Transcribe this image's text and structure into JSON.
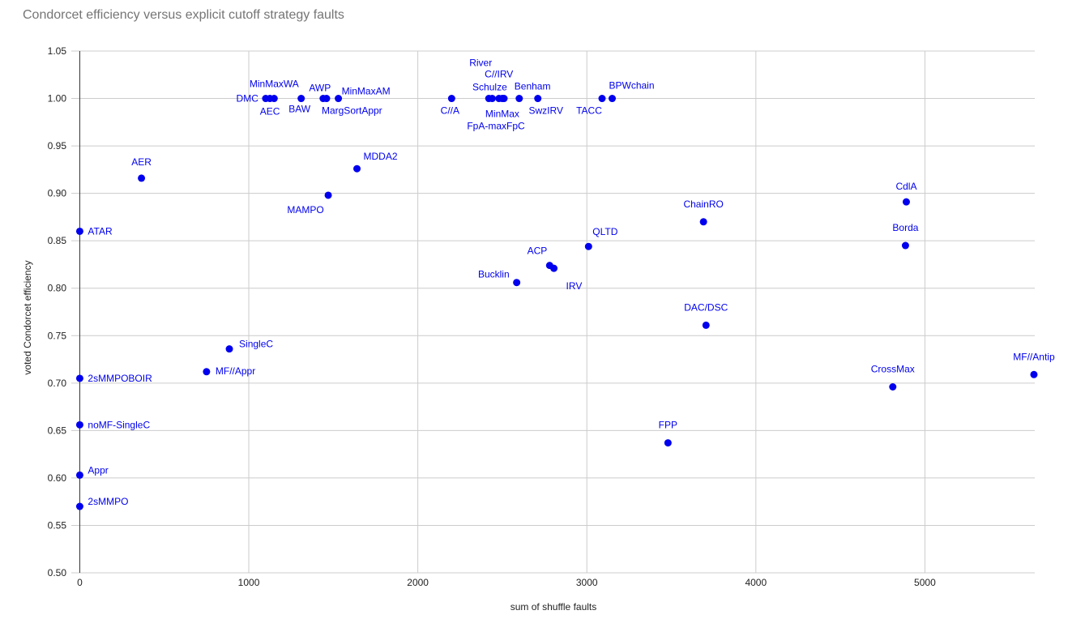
{
  "chart_data": {
    "type": "scatter",
    "title": "Condorcet efficiency versus explicit cutoff strategy faults",
    "xlabel": "sum of shuffle faults",
    "ylabel": "voted Condorcet efficiency",
    "xlim": [
      -50,
      5650
    ],
    "ylim": [
      0.5,
      1.05
    ],
    "xticks": [
      0,
      1000,
      2000,
      3000,
      4000,
      5000
    ],
    "yticks": [
      0.5,
      0.55,
      0.6,
      0.65,
      0.7,
      0.75,
      0.8,
      0.85,
      0.9,
      0.95,
      1.0,
      1.05
    ],
    "grid": true,
    "color": "#0000ee",
    "points": [
      {
        "label": "DMC",
        "x": 1100,
        "y": 1.0,
        "pos": "left"
      },
      {
        "label": "AEC",
        "x": 1125,
        "y": 1.0,
        "pos": "below"
      },
      {
        "label": "MinMaxWA",
        "x": 1150,
        "y": 1.0,
        "pos": "above"
      },
      {
        "label": "BAW",
        "x": 1310,
        "y": 1.0,
        "pos": "below"
      },
      {
        "label": "AWP",
        "x": 1440,
        "y": 1.0,
        "pos": "above"
      },
      {
        "label": "MargSortAppr",
        "x": 1460,
        "y": 1.0,
        "pos": "below-right"
      },
      {
        "label": "MinMaxAM",
        "x": 1530,
        "y": 1.0,
        "pos": "above-right"
      },
      {
        "label": "C//A",
        "x": 2200,
        "y": 1.0,
        "pos": "below-left"
      },
      {
        "label": "River",
        "x": 2420,
        "y": 1.0,
        "pos": "above-high"
      },
      {
        "label": "Schulze",
        "x": 2440,
        "y": 1.0,
        "pos": "above"
      },
      {
        "label": "C//IRV",
        "x": 2480,
        "y": 1.0,
        "pos": "above-mid"
      },
      {
        "label": "MinMax",
        "x": 2500,
        "y": 1.0,
        "pos": "below"
      },
      {
        "label": "FpA-maxFpC",
        "x": 2510,
        "y": 1.0,
        "pos": "below-low"
      },
      {
        "label": "Benham",
        "x": 2600,
        "y": 1.0,
        "pos": "above-right"
      },
      {
        "label": "SwzIRV",
        "x": 2710,
        "y": 1.0,
        "pos": "below-right"
      },
      {
        "label": "TACC",
        "x": 3090,
        "y": 1.0,
        "pos": "below-left"
      },
      {
        "label": "BPWchain",
        "x": 3150,
        "y": 1.0,
        "pos": "above-right"
      },
      {
        "label": "AER",
        "x": 365,
        "y": 0.916,
        "pos": "above"
      },
      {
        "label": "MDDA2",
        "x": 1640,
        "y": 0.926,
        "pos": "above-right"
      },
      {
        "label": "MAMPO",
        "x": 1470,
        "y": 0.898,
        "pos": "below-left"
      },
      {
        "label": "ATAR",
        "x": 0,
        "y": 0.86,
        "pos": "right"
      },
      {
        "label": "ChainRO",
        "x": 3690,
        "y": 0.87,
        "pos": "above"
      },
      {
        "label": "CdlA",
        "x": 4890,
        "y": 0.891,
        "pos": "above"
      },
      {
        "label": "Borda",
        "x": 4885,
        "y": 0.845,
        "pos": "above"
      },
      {
        "label": "QLTD",
        "x": 3010,
        "y": 0.844,
        "pos": "above-right"
      },
      {
        "label": "ACP",
        "x": 2780,
        "y": 0.824,
        "pos": "above-left"
      },
      {
        "label": "IRV",
        "x": 2805,
        "y": 0.821,
        "pos": "below-right"
      },
      {
        "label": "Bucklin",
        "x": 2585,
        "y": 0.806,
        "pos": "above-left"
      },
      {
        "label": "DAC/DSC",
        "x": 3705,
        "y": 0.761,
        "pos": "above"
      },
      {
        "label": "SingleC",
        "x": 885,
        "y": 0.736,
        "pos": "right-up"
      },
      {
        "label": "MF//Appr",
        "x": 750,
        "y": 0.712,
        "pos": "right"
      },
      {
        "label": "2sMMPOBOIR",
        "x": 0,
        "y": 0.705,
        "pos": "right"
      },
      {
        "label": "CrossMax",
        "x": 4810,
        "y": 0.696,
        "pos": "above"
      },
      {
        "label": "MF//Antip",
        "x": 5645,
        "y": 0.709,
        "pos": "above"
      },
      {
        "label": "noMF-SingleC",
        "x": 0,
        "y": 0.656,
        "pos": "right"
      },
      {
        "label": "FPP",
        "x": 3480,
        "y": 0.637,
        "pos": "above"
      },
      {
        "label": "Appr",
        "x": 0,
        "y": 0.603,
        "pos": "right-up"
      },
      {
        "label": "2sMMPO",
        "x": 0,
        "y": 0.57,
        "pos": "right-up"
      }
    ]
  }
}
